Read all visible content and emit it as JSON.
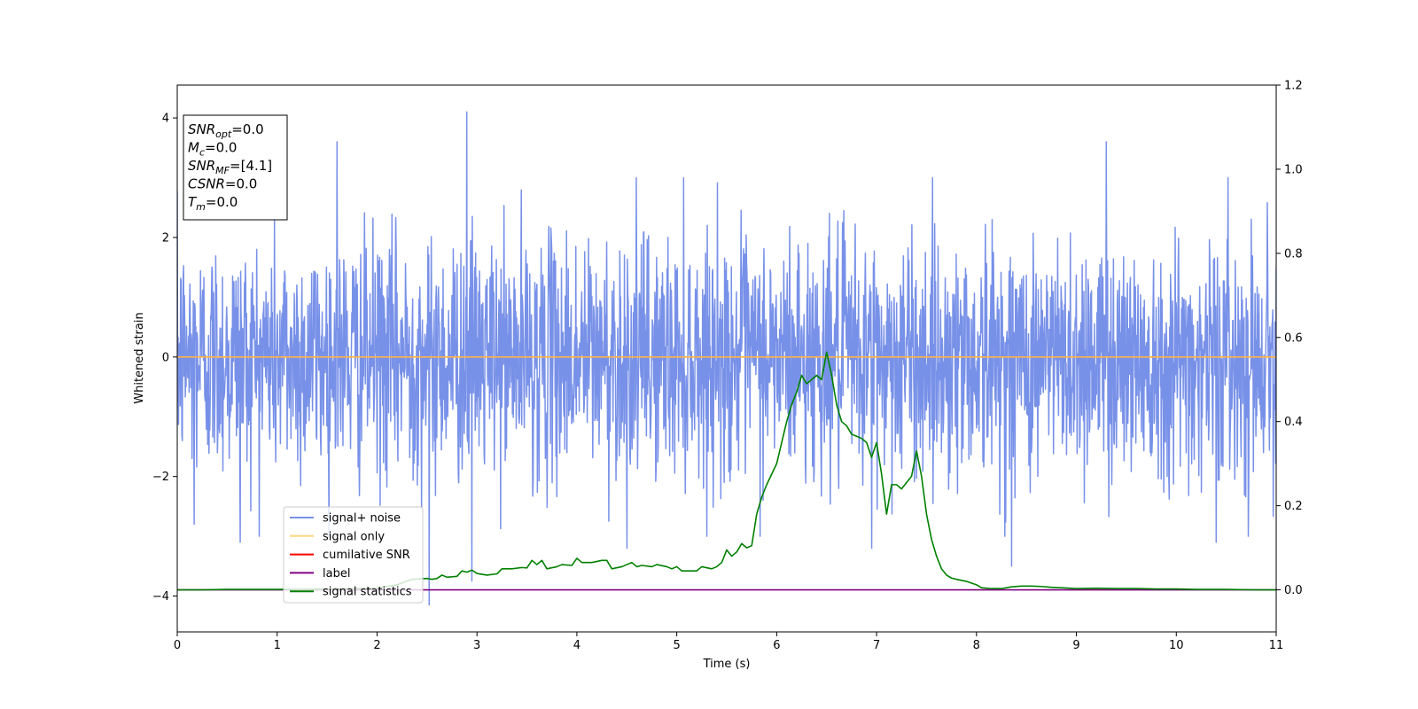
{
  "chart_data": {
    "type": "line",
    "xlabel": "Time (s)",
    "ylabel": "Whitened strain",
    "xlim": [
      0,
      11
    ],
    "ylim": [
      -4.6,
      4.55
    ],
    "y2lim": [
      -0.1,
      1.2
    ],
    "x_ticks": [
      "0",
      "1",
      "2",
      "3",
      "4",
      "5",
      "6",
      "7",
      "8",
      "9",
      "10",
      "11"
    ],
    "y_ticks": [
      "4",
      "2",
      "0",
      "−2",
      "−4"
    ],
    "y2_ticks": [
      "1.2",
      "1.0",
      "0.8",
      "0.6",
      "0.4",
      "0.2",
      "0.0"
    ],
    "info_box": {
      "lines": [
        {
          "sym": "SNR",
          "sub": "opt",
          "value": "=0.0"
        },
        {
          "sym": "M",
          "sub": "c",
          "value": "=0.0"
        },
        {
          "sym": "SNR",
          "sub": "MF",
          "value": "=[4.1]"
        },
        {
          "sym": "CSNR",
          "sub": "",
          "value": "=0.0"
        },
        {
          "sym": "T",
          "sub": "m",
          "value": "=0.0"
        }
      ]
    },
    "legend": {
      "position": "lower-left",
      "entries": [
        {
          "label": "signal+ noise",
          "color": "#7891e8"
        },
        {
          "label": "signal only",
          "color": "#ffd580"
        },
        {
          "label": "cumilative SNR",
          "color": "#ff0000"
        },
        {
          "label": "label",
          "color": "#800080"
        },
        {
          "label": "signal statistics",
          "color": "#008000"
        }
      ]
    },
    "series": [
      {
        "name": "signal+ noise",
        "color": "#7891e8",
        "axis": "left",
        "noise_sigma": 1.0,
        "noise_duration": 11,
        "noise_peaks": [
          [
            0.17,
            -2.8
          ],
          [
            0.63,
            -3.1
          ],
          [
            1.6,
            3.6
          ],
          [
            2.52,
            -4.15
          ],
          [
            2.9,
            4.1
          ],
          [
            2.95,
            -3.75
          ],
          [
            4.5,
            -3.2
          ],
          [
            6.95,
            -3.2
          ],
          [
            8.35,
            -3.5
          ],
          [
            9.3,
            3.6
          ],
          [
            10.4,
            -3.1
          ]
        ]
      },
      {
        "name": "signal only",
        "color": "#ffb347",
        "axis": "left",
        "x": [
          0,
          11
        ],
        "y": [
          0,
          0
        ]
      },
      {
        "name": "label",
        "color": "#800080",
        "axis": "right",
        "x": [
          0,
          11
        ],
        "y": [
          0,
          0
        ]
      },
      {
        "name": "signal statistics",
        "color": "#008000",
        "axis": "right",
        "x": [
          0,
          0.25,
          0.5,
          1.0,
          1.5,
          2.0,
          2.2,
          2.35,
          2.5,
          2.55,
          2.6,
          2.65,
          2.7,
          2.8,
          2.85,
          2.9,
          2.95,
          3.0,
          3.1,
          3.2,
          3.25,
          3.35,
          3.45,
          3.5,
          3.55,
          3.6,
          3.65,
          3.7,
          3.8,
          3.85,
          3.95,
          4.0,
          4.05,
          4.15,
          4.25,
          4.3,
          4.35,
          4.45,
          4.5,
          4.55,
          4.6,
          4.65,
          4.75,
          4.8,
          4.9,
          4.95,
          5.0,
          5.05,
          5.1,
          5.2,
          5.25,
          5.35,
          5.4,
          5.45,
          5.5,
          5.55,
          5.6,
          5.65,
          5.7,
          5.75,
          5.8,
          5.85,
          5.9,
          5.95,
          6.0,
          6.05,
          6.1,
          6.15,
          6.2,
          6.25,
          6.3,
          6.35,
          6.4,
          6.45,
          6.5,
          6.55,
          6.6,
          6.65,
          6.7,
          6.75,
          6.8,
          6.85,
          6.9,
          6.95,
          7.0,
          7.05,
          7.1,
          7.15,
          7.2,
          7.25,
          7.3,
          7.35,
          7.4,
          7.45,
          7.5,
          7.55,
          7.6,
          7.65,
          7.7,
          7.75,
          7.8,
          7.9,
          8.0,
          8.05,
          8.15,
          8.25,
          8.35,
          8.45,
          8.55,
          8.65,
          8.75,
          8.85,
          9.0,
          9.2,
          9.4,
          9.6,
          9.8,
          10.0,
          10.2,
          10.5,
          10.8,
          11.0
        ],
        "y": [
          0.0,
          0.0,
          0.001,
          0.001,
          0.002,
          0.004,
          0.012,
          0.025,
          0.027,
          0.025,
          0.027,
          0.035,
          0.03,
          0.032,
          0.045,
          0.042,
          0.047,
          0.039,
          0.035,
          0.038,
          0.05,
          0.05,
          0.053,
          0.052,
          0.07,
          0.06,
          0.07,
          0.05,
          0.055,
          0.06,
          0.058,
          0.075,
          0.065,
          0.065,
          0.07,
          0.07,
          0.05,
          0.055,
          0.06,
          0.065,
          0.055,
          0.058,
          0.055,
          0.06,
          0.055,
          0.05,
          0.055,
          0.045,
          0.045,
          0.045,
          0.055,
          0.05,
          0.055,
          0.065,
          0.095,
          0.08,
          0.09,
          0.11,
          0.1,
          0.105,
          0.18,
          0.22,
          0.25,
          0.275,
          0.3,
          0.35,
          0.4,
          0.44,
          0.47,
          0.51,
          0.49,
          0.5,
          0.51,
          0.5,
          0.565,
          0.51,
          0.44,
          0.4,
          0.39,
          0.37,
          0.365,
          0.36,
          0.35,
          0.315,
          0.35,
          0.275,
          0.18,
          0.25,
          0.25,
          0.24,
          0.255,
          0.27,
          0.33,
          0.27,
          0.18,
          0.12,
          0.08,
          0.05,
          0.035,
          0.028,
          0.025,
          0.02,
          0.012,
          0.005,
          0.003,
          0.003,
          0.007,
          0.009,
          0.009,
          0.008,
          0.006,
          0.005,
          0.003,
          0.004,
          0.003,
          0.003,
          0.002,
          0.002,
          0.001,
          0.001,
          0.0,
          0.0
        ]
      }
    ]
  }
}
